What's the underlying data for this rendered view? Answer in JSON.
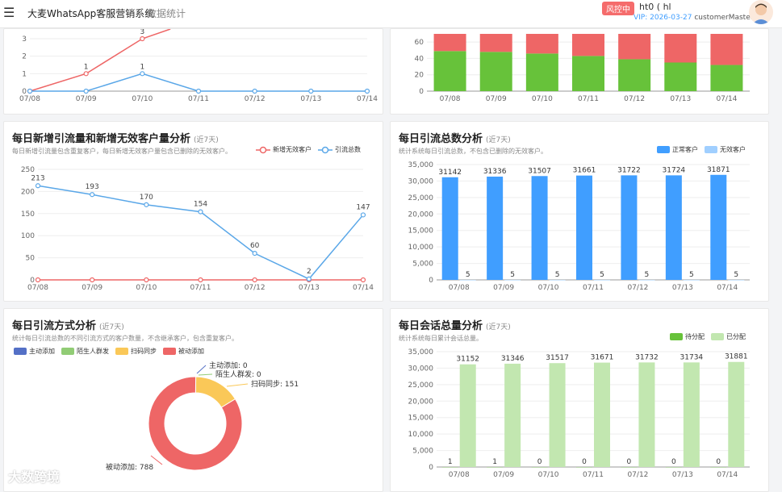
{
  "header": {
    "app_title": "大麦WhatsApp客服营销系统",
    "separator": "/",
    "page": "数据统计",
    "risk_badge": "风控中",
    "user_id": "ht0        ( hl",
    "vip_prefix": "VIP: 2026-03-27",
    "vip_user": "customerMaster"
  },
  "colors": {
    "red": "#ee6666",
    "blue": "#5aa7e8",
    "green": "#67c23a",
    "barblue": "#409eff",
    "lightblue": "#a0cfff",
    "lightgreen": "#c2e7b0",
    "yellow": "#fac858",
    "navy": "#5470c6",
    "ltgreen": "#91cc75"
  },
  "panel_tl": {
    "chart_data": {
      "type": "line",
      "categories": [
        "07/08",
        "07/09",
        "07/10",
        "07/11",
        "07/12",
        "07/13",
        "07/14"
      ],
      "y_ticks": [
        "0",
        "1",
        "2",
        "3"
      ],
      "series": [
        {
          "values": [
            0,
            1,
            3,
            null,
            null,
            null,
            null
          ],
          "labels": [
            "",
            "1",
            "3",
            "",
            "",
            "",
            ""
          ]
        },
        {
          "values": [
            0,
            0,
            1,
            0,
            0,
            0,
            0
          ],
          "labels": [
            "",
            "",
            "1",
            "",
            "",
            "",
            ""
          ]
        }
      ]
    }
  },
  "panel_tr": {
    "chart_data": {
      "type": "bar",
      "categories": [
        "07/08",
        "07/09",
        "07/10",
        "07/11",
        "07/12",
        "07/13",
        "07/14"
      ],
      "y_ticks": [
        "0",
        "20",
        "40",
        "60"
      ],
      "series": [
        {
          "values": [
            49,
            48,
            46,
            43,
            39,
            35,
            32
          ]
        },
        {
          "values": [
            21,
            22,
            24,
            27,
            31,
            35,
            38
          ]
        }
      ]
    }
  },
  "panel_ml": {
    "title": "每日新增引流量和新增无效客户量分析",
    "subtitle": "(近7天)",
    "desc": "每日新增引流量包含重复客户，每日新增无效客户量包含已删除的无效客户。",
    "legend": [
      "新增无效客户",
      "引流总数"
    ],
    "chart_data": {
      "type": "line",
      "categories": [
        "07/08",
        "07/09",
        "07/10",
        "07/11",
        "07/12",
        "07/13",
        "07/14"
      ],
      "y_ticks": [
        "0",
        "50",
        "100",
        "150",
        "200",
        "250"
      ],
      "y_ticks_shown": [
        "0",
        "50",
        "100",
        "150",
        "200",
        "250"
      ],
      "series": [
        {
          "name": "新增无效客户",
          "values": [
            0,
            0,
            0,
            0,
            0,
            0,
            0
          ]
        },
        {
          "name": "引流总数",
          "values": [
            213,
            193,
            170,
            154,
            60,
            2,
            147
          ]
        }
      ]
    }
  },
  "panel_mr": {
    "title": "每日引流总数分析",
    "subtitle": "(近7天)",
    "desc": "统计系统每日引流总数，不包含已删除的无效客户。",
    "legend": [
      "正常客户",
      "无效客户"
    ],
    "chart_data": {
      "type": "bar",
      "categories": [
        "07/08",
        "07/09",
        "07/10",
        "07/11",
        "07/12",
        "07/13",
        "07/14"
      ],
      "y_ticks": [
        "0",
        "5,000",
        "10,000",
        "15,000",
        "20,000",
        "25,000",
        "30,000",
        "35,000"
      ],
      "series": [
        {
          "name": "正常客户",
          "values": [
            31142,
            31336,
            31507,
            31661,
            31722,
            31724,
            31871
          ]
        },
        {
          "name": "无效客户",
          "values": [
            5,
            5,
            5,
            5,
            5,
            5,
            5
          ]
        }
      ]
    }
  },
  "panel_bl": {
    "title": "每日引流方式分析",
    "subtitle": "(近7天)",
    "desc": "统计每日引流总数的不同引流方式的客户数量，不含继承客户，包含重复客户。",
    "legend": [
      "主动添加",
      "陌生人群发",
      "扫码同步",
      "被动添加"
    ],
    "chart_data": {
      "type": "pie",
      "slices": [
        {
          "name": "主动添加",
          "value": 0,
          "label": "主动添加: 0"
        },
        {
          "name": "陌生人群发",
          "value": 0,
          "label": "陌生人群发: 0"
        },
        {
          "name": "扫码同步",
          "value": 151,
          "label": "扫码同步: 151"
        },
        {
          "name": "被动添加",
          "value": 788,
          "label": "被动添加: 788"
        }
      ]
    }
  },
  "panel_br": {
    "title": "每日会话总量分析",
    "subtitle": "(近7天)",
    "desc": "统计系统每日累计会话总量。",
    "legend": [
      "待分配",
      "已分配"
    ],
    "chart_data": {
      "type": "bar",
      "categories": [
        "07/08",
        "07/09",
        "07/10",
        "07/11",
        "07/12",
        "07/13",
        "07/14"
      ],
      "y_ticks": [
        "0",
        "5,000",
        "10,000",
        "15,000",
        "20,000",
        "25,000",
        "30,000",
        "35,000"
      ],
      "series": [
        {
          "name": "待分配",
          "values": [
            1,
            1,
            0,
            0,
            0,
            0,
            0
          ]
        },
        {
          "name": "已分配",
          "values": [
            31152,
            31346,
            31517,
            31671,
            31732,
            31734,
            31881
          ]
        }
      ]
    }
  },
  "watermark": "大数跨境"
}
